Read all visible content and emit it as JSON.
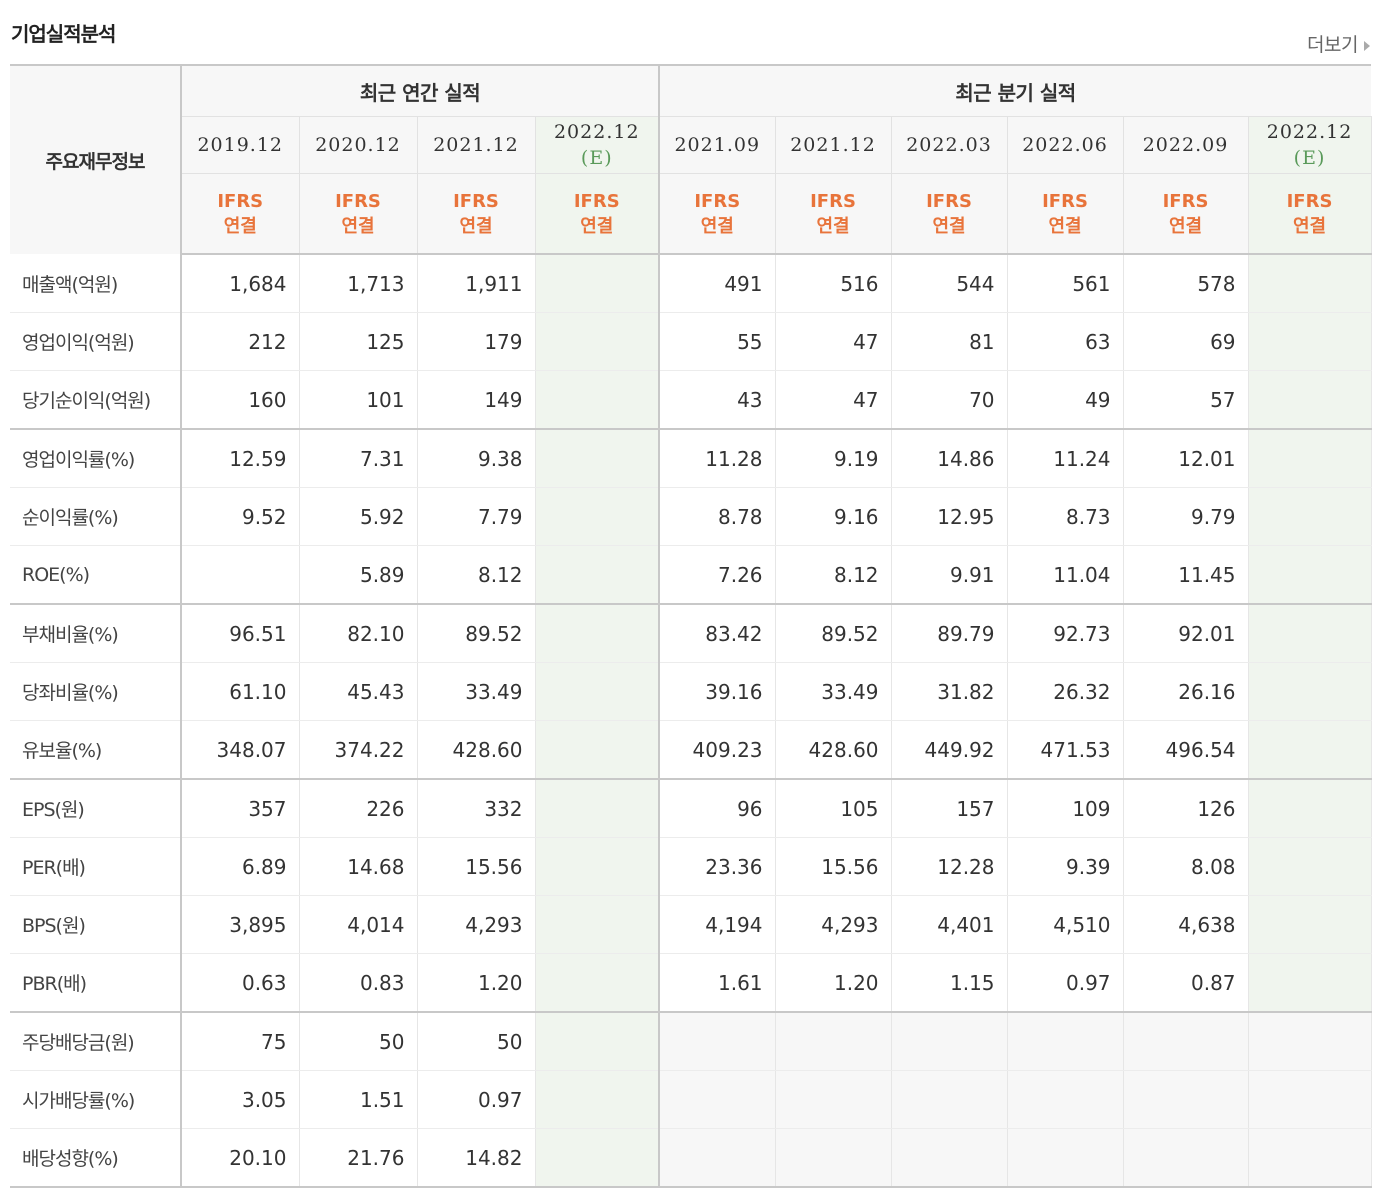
{
  "title": "기업실적분석",
  "more_label": "더보기",
  "header": {
    "corner": "주요재무정보",
    "annual_label": "최근 연간 실적",
    "quarter_label": "최근 분기 실적",
    "annual_periods": [
      "2019.12",
      "2020.12",
      "2021.12",
      "2022.12"
    ],
    "quarter_periods": [
      "2021.09",
      "2021.12",
      "2022.03",
      "2022.06",
      "2022.09",
      "2022.12"
    ],
    "estimate_mark": "(E)",
    "ifrs_top": "IFRS",
    "ifrs_bottom": "연결"
  },
  "rows": [
    {
      "label": "매출액(억원)",
      "annual": [
        "1,684",
        "1,713",
        "1,911",
        ""
      ],
      "quarter": [
        "491",
        "516",
        "544",
        "561",
        "578",
        ""
      ]
    },
    {
      "label": "영업이익(억원)",
      "annual": [
        "212",
        "125",
        "179",
        ""
      ],
      "quarter": [
        "55",
        "47",
        "81",
        "63",
        "69",
        ""
      ]
    },
    {
      "label": "당기순이익(억원)",
      "annual": [
        "160",
        "101",
        "149",
        ""
      ],
      "quarter": [
        "43",
        "47",
        "70",
        "49",
        "57",
        ""
      ]
    },
    {
      "label": "영업이익률(%)",
      "annual": [
        "12.59",
        "7.31",
        "9.38",
        ""
      ],
      "quarter": [
        "11.28",
        "9.19",
        "14.86",
        "11.24",
        "12.01",
        ""
      ]
    },
    {
      "label": "순이익률(%)",
      "annual": [
        "9.52",
        "5.92",
        "7.79",
        ""
      ],
      "quarter": [
        "8.78",
        "9.16",
        "12.95",
        "8.73",
        "9.79",
        ""
      ]
    },
    {
      "label": "ROE(%)",
      "annual": [
        "",
        "5.89",
        "8.12",
        ""
      ],
      "quarter": [
        "7.26",
        "8.12",
        "9.91",
        "11.04",
        "11.45",
        ""
      ]
    },
    {
      "label": "부채비율(%)",
      "annual": [
        "96.51",
        "82.10",
        "89.52",
        ""
      ],
      "quarter": [
        "83.42",
        "89.52",
        "89.79",
        "92.73",
        "92.01",
        ""
      ]
    },
    {
      "label": "당좌비율(%)",
      "annual": [
        "61.10",
        "45.43",
        "33.49",
        ""
      ],
      "quarter": [
        "39.16",
        "33.49",
        "31.82",
        "26.32",
        "26.16",
        ""
      ]
    },
    {
      "label": "유보율(%)",
      "annual": [
        "348.07",
        "374.22",
        "428.60",
        ""
      ],
      "quarter": [
        "409.23",
        "428.60",
        "449.92",
        "471.53",
        "496.54",
        ""
      ]
    },
    {
      "label": "EPS(원)",
      "annual": [
        "357",
        "226",
        "332",
        ""
      ],
      "quarter": [
        "96",
        "105",
        "157",
        "109",
        "126",
        ""
      ]
    },
    {
      "label": "PER(배)",
      "annual": [
        "6.89",
        "14.68",
        "15.56",
        ""
      ],
      "quarter": [
        "23.36",
        "15.56",
        "12.28",
        "9.39",
        "8.08",
        ""
      ]
    },
    {
      "label": "BPS(원)",
      "annual": [
        "3,895",
        "4,014",
        "4,293",
        ""
      ],
      "quarter": [
        "4,194",
        "4,293",
        "4,401",
        "4,510",
        "4,638",
        ""
      ]
    },
    {
      "label": "PBR(배)",
      "annual": [
        "0.63",
        "0.83",
        "1.20",
        ""
      ],
      "quarter": [
        "1.61",
        "1.20",
        "1.15",
        "0.97",
        "0.87",
        ""
      ]
    },
    {
      "label": "주당배당금(원)",
      "annual": [
        "75",
        "50",
        "50",
        ""
      ],
      "quarter": [
        "",
        "",
        "",
        "",
        "",
        ""
      ]
    },
    {
      "label": "시가배당률(%)",
      "annual": [
        "3.05",
        "1.51",
        "0.97",
        ""
      ],
      "quarter": [
        "",
        "",
        "",
        "",
        "",
        ""
      ]
    },
    {
      "label": "배당성향(%)",
      "annual": [
        "20.10",
        "21.76",
        "14.82",
        ""
      ],
      "quarter": [
        "",
        "",
        "",
        "",
        "",
        ""
      ]
    }
  ]
}
